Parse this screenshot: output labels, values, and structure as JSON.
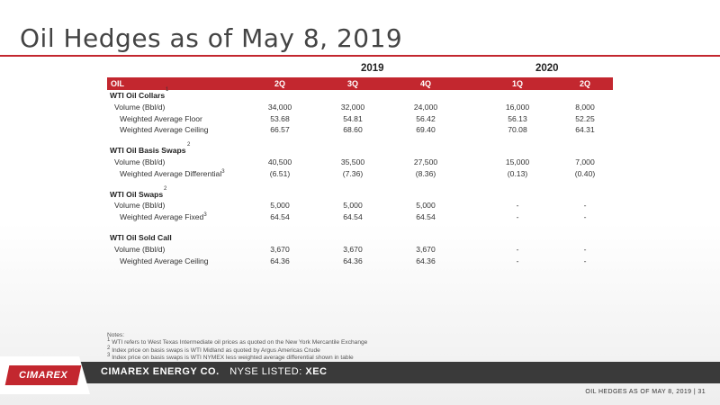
{
  "title": "Oil Hedges as of May 8, 2019",
  "years": [
    "2019",
    "2020"
  ],
  "header": {
    "label": "OIL",
    "quarters": [
      "2Q",
      "3Q",
      "4Q",
      "1Q",
      "2Q"
    ]
  },
  "sections": [
    {
      "name": "WTI Oil Collars",
      "sup": "1",
      "rows": [
        {
          "label": "Volume (Bbl/d)",
          "sup": "",
          "values": [
            "34,000",
            "32,000",
            "24,000",
            "16,000",
            "8,000"
          ]
        },
        {
          "label": "Weighted Average Floor",
          "sup": "",
          "values": [
            "53.68",
            "54.81",
            "56.42",
            "56.13",
            "52.25"
          ]
        },
        {
          "label": "Weighted Average Ceiling",
          "sup": "",
          "values": [
            "66.57",
            "68.60",
            "69.40",
            "70.08",
            "64.31"
          ]
        }
      ]
    },
    {
      "name": "WTI Oil Basis Swaps",
      "sup": "2",
      "rows": [
        {
          "label": "Volume (Bbl/d)",
          "sup": "",
          "values": [
            "40,500",
            "35,500",
            "27,500",
            "15,000",
            "7,000"
          ]
        },
        {
          "label": "Weighted Average Differential",
          "sup": "3",
          "values": [
            "(6.51)",
            "(7.36)",
            "(8.36)",
            "(0.13)",
            "(0.40)"
          ]
        }
      ]
    },
    {
      "name": "WTI Oil Swaps",
      "sup": "2",
      "rows": [
        {
          "label": "Volume (Bbl/d)",
          "sup": "",
          "values": [
            "5,000",
            "5,000",
            "5,000",
            "-",
            "-"
          ]
        },
        {
          "label": "Weighted Average Fixed",
          "sup": "3",
          "values": [
            "64.54",
            "64.54",
            "64.54",
            "-",
            "-"
          ]
        }
      ]
    },
    {
      "name": "WTI Oil Sold Call",
      "sup": "",
      "rows": [
        {
          "label": "Volume (Bbl/d)",
          "sup": "",
          "values": [
            "3,670",
            "3,670",
            "3,670",
            "-",
            "-"
          ]
        },
        {
          "label": "Weighted Average Ceiling",
          "sup": "",
          "values": [
            "64.36",
            "64.36",
            "64.36",
            "-",
            "-"
          ]
        }
      ]
    }
  ],
  "notes": {
    "heading": "Notes:",
    "items": [
      {
        "num": "1",
        "text": "WTI refers to West Texas Intermediate oil prices as quoted on the New York Mercantile Exchange"
      },
      {
        "num": "2",
        "text": "Index price on basis swaps is WTI Midland as quoted by Argus Americas Crude"
      },
      {
        "num": "3",
        "text": "Index price on basis swaps is WTI NYMEX less weighted average differential shown in table"
      }
    ]
  },
  "footer": {
    "logo": "CIMAREX",
    "company": "CIMAREX ENERGY CO.",
    "nyse_label": "NYSE LISTED:",
    "ticker": "XEC",
    "page_label": "OIL HEDGES AS OF MAY 8, 2019",
    "separator": "|",
    "page_number": "31"
  },
  "colors": {
    "accent": "#c3272f",
    "footer_band": "#3a3a3a"
  }
}
